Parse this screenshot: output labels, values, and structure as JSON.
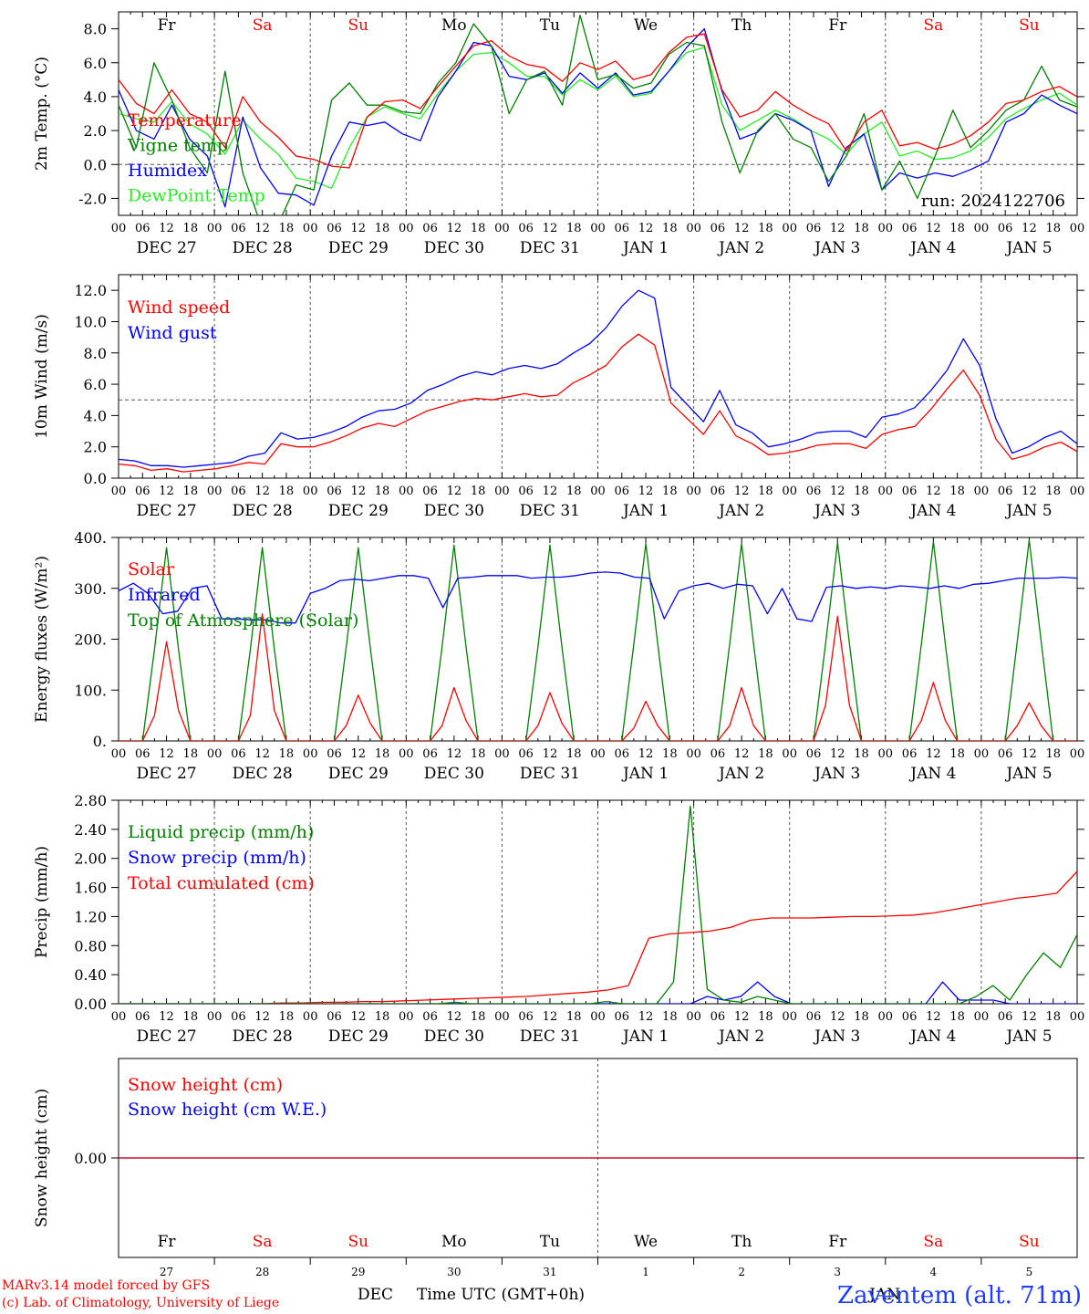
{
  "colors": {
    "red": "#ff0000",
    "green": "#007f00",
    "lightgreen": "#22ee22",
    "blue": "#0000ff",
    "axis": "#000000",
    "grid": "#555555"
  },
  "x_axis": {
    "hour_ticks": [
      "00",
      "06",
      "12",
      "18"
    ],
    "day_labels": [
      "DEC 27",
      "DEC 28",
      "DEC 29",
      "DEC 30",
      "DEC 31",
      "JAN  1",
      "JAN  2",
      "JAN  3",
      "JAN  4",
      "JAN  5"
    ],
    "weekdays": [
      {
        "label": "Fr",
        "weekend": false
      },
      {
        "label": "Sa",
        "weekend": true
      },
      {
        "label": "Su",
        "weekend": true
      },
      {
        "label": "Mo",
        "weekend": false
      },
      {
        "label": "Tu",
        "weekend": false
      },
      {
        "label": "We",
        "weekend": false
      },
      {
        "label": "Th",
        "weekend": false
      },
      {
        "label": "Fr",
        "weekend": false
      },
      {
        "label": "Sa",
        "weekend": true
      },
      {
        "label": "Su",
        "weekend": true
      }
    ],
    "day_numbers": [
      "27",
      "28",
      "29",
      "30",
      "31",
      "1",
      "2",
      "3",
      "4",
      "5"
    ],
    "month_left": "DEC",
    "month_right": "JAN",
    "axis_title": "Time UTC (GMT+0h)"
  },
  "footer": {
    "model_line": "MARv3.14 model forced by GFS",
    "credit_line": "(c) Lab. of Climatology, University of Liege",
    "station": "Zaventem (alt. 71m)"
  },
  "chart_data": [
    {
      "type": "line",
      "id": "temp",
      "ylabel": "2m Temp. (°C)",
      "ylim": [
        -3,
        9
      ],
      "yticks": [
        -2,
        0,
        2,
        4,
        6,
        8
      ],
      "ytick_labels": [
        "-2.0",
        "0.0",
        "2.0",
        "4.0",
        "6.0",
        "8.0"
      ],
      "hline": 0,
      "annotation": "run: 2024122706",
      "x_unit": "hours since Dec 27 00 UTC, every 6 h",
      "legend": [
        {
          "name": "Temperature",
          "color": "red"
        },
        {
          "name": "Vigne temp",
          "color": "green"
        },
        {
          "name": "Humidex",
          "color": "blue"
        },
        {
          "name": "DewPoint Temp",
          "color": "lightgreen"
        }
      ],
      "series": [
        {
          "name": "Temperature",
          "color": "red",
          "values": [
            5,
            3.6,
            3.0,
            4.4,
            3.0,
            2.5,
            1.0,
            4.0,
            2.5,
            1.6,
            0.5,
            0.3,
            -0.1,
            -0.2,
            2.8,
            3.7,
            3.8,
            3.3,
            4.6,
            5.8,
            7.0,
            7.3,
            6.4,
            5.9,
            5.7,
            4.9,
            6.0,
            5.6,
            6.1,
            5.0,
            5.3,
            6.6,
            7.5,
            7.7,
            4.4,
            2.8,
            3.2,
            4.3,
            3.5,
            2.9,
            2.4,
            0.8,
            2.5,
            3.2,
            1.1,
            1.3,
            0.9,
            1.2,
            1.7,
            2.5,
            3.6,
            3.8,
            4.3,
            4.6,
            4.0
          ]
        },
        {
          "name": "Vigne temp",
          "color": "green",
          "values": [
            3.5,
            1.0,
            6.0,
            3.8,
            1.0,
            -0.5,
            5.5,
            -0.5,
            -3.5,
            -3.5,
            -1.2,
            -1.5,
            3.8,
            4.8,
            3.5,
            3.5,
            3.1,
            3.0,
            4.8,
            6.0,
            8.3,
            7.0,
            3.0,
            5.0,
            5.5,
            3.5,
            8.8,
            5.0,
            5.3,
            4.5,
            4.8,
            6.5,
            7.2,
            7.0,
            2.5,
            -0.5,
            2.0,
            3.0,
            1.5,
            1.0,
            -1.0,
            0.5,
            3.0,
            -1.5,
            0.2,
            -2.0,
            0.5,
            3.2,
            1.0,
            2.0,
            3.2,
            3.8,
            5.8,
            3.8,
            3.4
          ]
        },
        {
          "name": "Humidex",
          "color": "blue",
          "values": [
            4.4,
            2.0,
            1.5,
            3.5,
            1.5,
            0.5,
            -2.5,
            2.8,
            -0.2,
            -1.7,
            -1.8,
            -2.4,
            0.5,
            2.5,
            2.3,
            2.5,
            1.8,
            1.4,
            4.0,
            5.5,
            7.2,
            7.0,
            5.2,
            5.0,
            5.4,
            4.2,
            5.4,
            4.5,
            5.4,
            4.1,
            4.3,
            5.5,
            6.9,
            8.0,
            4.3,
            1.5,
            1.9,
            3.0,
            2.6,
            2.0,
            -1.3,
            1.0,
            1.8,
            -1.5,
            -0.5,
            -0.8,
            -0.5,
            -0.7,
            -0.3,
            0.2,
            2.5,
            3.0,
            4.1,
            3.5,
            3.0
          ]
        },
        {
          "name": "DewPoint Temp",
          "color": "lightgreen",
          "values": [
            3.0,
            2.7,
            2.5,
            3.7,
            2.4,
            1.8,
            0.6,
            2.6,
            1.5,
            0.6,
            -0.8,
            -1.0,
            -1.4,
            1.0,
            2.8,
            3.4,
            3.0,
            2.7,
            4.2,
            5.5,
            6.5,
            6.6,
            6.0,
            5.2,
            5.2,
            4.1,
            5.0,
            4.4,
            5.2,
            4.0,
            4.2,
            5.5,
            6.6,
            6.9,
            3.5,
            2.0,
            2.6,
            3.2,
            2.7,
            2.0,
            1.5,
            0.6,
            1.8,
            2.5,
            0.5,
            0.8,
            0.3,
            0.4,
            0.8,
            1.6,
            2.7,
            3.3,
            3.8,
            4.2,
            3.5
          ]
        }
      ]
    },
    {
      "type": "line",
      "id": "wind",
      "ylabel": "10m Wind (m/s)",
      "ylim": [
        0,
        13
      ],
      "yticks": [
        0,
        2,
        4,
        6,
        8,
        10,
        12
      ],
      "ytick_labels": [
        "0.0",
        "2.0",
        "4.0",
        "6.0",
        "8.0",
        "10.0",
        "12.0"
      ],
      "hline": 5,
      "x_unit": "hours since Dec 27 00 UTC, every 6 h",
      "legend": [
        {
          "name": "Wind speed",
          "color": "red"
        },
        {
          "name": "Wind gust",
          "color": "blue"
        }
      ],
      "series": [
        {
          "name": "Wind speed",
          "color": "red",
          "values": [
            0.9,
            0.8,
            0.5,
            0.6,
            0.4,
            0.5,
            0.6,
            0.8,
            1.0,
            0.9,
            2.2,
            2.0,
            2.0,
            2.3,
            2.7,
            3.2,
            3.5,
            3.3,
            3.8,
            4.3,
            4.6,
            4.9,
            5.1,
            5.0,
            5.2,
            5.4,
            5.2,
            5.3,
            6.1,
            6.6,
            7.2,
            8.4,
            9.2,
            8.5,
            4.8,
            3.8,
            2.8,
            4.3,
            2.7,
            2.2,
            1.5,
            1.6,
            1.8,
            2.1,
            2.2,
            2.2,
            1.9,
            2.8,
            3.1,
            3.3,
            4.4,
            5.7,
            6.9,
            5.3,
            2.5,
            1.2,
            1.5,
            2.0,
            2.3,
            1.7
          ]
        },
        {
          "name": "Wind gust",
          "color": "blue",
          "values": [
            1.2,
            1.1,
            0.8,
            0.8,
            0.7,
            0.8,
            0.9,
            1.0,
            1.4,
            1.6,
            2.9,
            2.5,
            2.6,
            2.9,
            3.3,
            3.9,
            4.3,
            4.4,
            4.8,
            5.6,
            6.0,
            6.5,
            6.8,
            6.6,
            7.0,
            7.2,
            7.0,
            7.3,
            8.0,
            8.6,
            9.6,
            11.0,
            12.0,
            11.5,
            5.8,
            4.7,
            3.6,
            5.6,
            3.4,
            2.9,
            2.0,
            2.2,
            2.5,
            2.9,
            3.0,
            3.0,
            2.6,
            3.9,
            4.1,
            4.5,
            5.6,
            6.9,
            8.9,
            7.2,
            3.8,
            1.6,
            2.0,
            2.6,
            3.0,
            2.2
          ]
        }
      ]
    },
    {
      "type": "line",
      "id": "energy",
      "ylabel": "Energy fluxes (W/m²)",
      "ylim": [
        0,
        400
      ],
      "yticks": [
        0,
        100,
        200,
        300,
        400
      ],
      "ytick_labels": [
        "0.",
        "100.",
        "200.",
        "300.",
        "400."
      ],
      "x_unit": "hours since Dec 27 00 UTC, every 3 h",
      "legend": [
        {
          "name": "Solar",
          "color": "red"
        },
        {
          "name": "Infrared",
          "color": "blue"
        },
        {
          "name": "Top of Atmosphere (Solar)",
          "color": "green"
        }
      ],
      "series": [
        {
          "name": "Solar",
          "color": "red",
          "values": [
            0,
            0,
            0,
            50,
            195,
            60,
            0,
            0,
            0,
            0,
            0,
            50,
            250,
            60,
            0,
            0,
            0,
            0,
            0,
            30,
            90,
            35,
            0,
            0,
            0,
            0,
            0,
            30,
            105,
            40,
            0,
            0,
            0,
            0,
            0,
            30,
            95,
            35,
            0,
            0,
            0,
            0,
            0,
            25,
            78,
            30,
            0,
            0,
            0,
            0,
            0,
            30,
            105,
            30,
            0,
            0,
            0,
            0,
            0,
            70,
            245,
            70,
            0,
            0,
            0,
            0,
            0,
            40,
            115,
            40,
            0,
            0,
            0,
            0,
            0,
            30,
            75,
            30,
            0,
            0,
            0
          ]
        },
        {
          "name": "Infrared",
          "color": "blue",
          "values": [
            295,
            310,
            290,
            250,
            255,
            300,
            305,
            240,
            240,
            238,
            238,
            232,
            232,
            290,
            300,
            315,
            318,
            315,
            320,
            325,
            325,
            320,
            262,
            320,
            322,
            325,
            325,
            325,
            320,
            322,
            322,
            325,
            330,
            332,
            330,
            322,
            320,
            240,
            295,
            305,
            310,
            300,
            308,
            305,
            250,
            300,
            240,
            235,
            302,
            305,
            300,
            303,
            300,
            305,
            303,
            300,
            305,
            300,
            308,
            310,
            315,
            320,
            320,
            320,
            322,
            320
          ]
        },
        {
          "name": "Top of Atmosphere (Solar)",
          "color": "green",
          "values": [
            0,
            0,
            0,
            180,
            380,
            180,
            0,
            0,
            0,
            0,
            0,
            180,
            380,
            180,
            0,
            0,
            0,
            0,
            0,
            185,
            380,
            185,
            0,
            0,
            0,
            0,
            0,
            185,
            385,
            185,
            0,
            0,
            0,
            0,
            0,
            185,
            385,
            185,
            0,
            0,
            0,
            0,
            0,
            190,
            388,
            190,
            0,
            0,
            0,
            0,
            0,
            190,
            388,
            190,
            0,
            0,
            0,
            0,
            0,
            190,
            390,
            190,
            0,
            0,
            0,
            0,
            0,
            190,
            392,
            190,
            0,
            0,
            0,
            0,
            0,
            195,
            395,
            195,
            0,
            0,
            0
          ]
        }
      ]
    },
    {
      "type": "line",
      "id": "precip",
      "ylabel": "Precip (mm/h)",
      "ylim": [
        0,
        2.8
      ],
      "yticks": [
        0,
        0.4,
        0.8,
        1.2,
        1.6,
        2.0,
        2.4,
        2.8
      ],
      "ytick_labels": [
        "0.00",
        "0.40",
        "0.80",
        "1.20",
        "1.60",
        "2.00",
        "2.40",
        "2.80"
      ],
      "x_unit": "hours since Dec 27 00 UTC, every 6 h",
      "legend": [
        {
          "name": "Liquid precip (mm/h)",
          "color": "green"
        },
        {
          "name": "Snow precip (mm/h)",
          "color": "blue"
        },
        {
          "name": "Total cumulated (cm)",
          "color": "red"
        }
      ],
      "series": [
        {
          "name": "Liquid precip (mm/h)",
          "color": "green",
          "values": [
            0,
            0,
            0,
            0,
            0,
            0,
            0,
            0,
            0,
            0,
            0,
            0,
            0,
            0,
            0,
            0,
            0,
            0,
            0,
            0,
            0.02,
            0,
            0,
            0,
            0,
            0,
            0,
            0,
            0,
            0.03,
            0,
            0,
            0,
            0.3,
            2.72,
            0.2,
            0.05,
            0.02,
            0.1,
            0.05,
            0,
            0,
            0,
            0,
            0,
            0,
            0,
            0,
            0,
            0,
            0,
            0.1,
            0.25,
            0.05,
            0.4,
            0.7,
            0.5,
            0.95
          ]
        },
        {
          "name": "Snow precip (mm/h)",
          "color": "blue",
          "values": [
            0,
            0,
            0,
            0,
            0,
            0,
            0,
            0,
            0,
            0,
            0,
            0,
            0,
            0,
            0,
            0,
            0,
            0,
            0,
            0,
            0,
            0,
            0,
            0,
            0,
            0,
            0,
            0,
            0,
            0,
            0,
            0,
            0,
            0,
            0,
            0.1,
            0.05,
            0.1,
            0.3,
            0.1,
            0,
            0,
            0,
            0,
            0,
            0,
            0,
            0,
            0,
            0.3,
            0.05,
            0.05,
            0.05,
            0,
            0,
            0,
            0,
            0
          ]
        },
        {
          "name": "Total cumulated (cm)",
          "color": "red",
          "values": [
            0,
            0,
            0,
            0,
            0,
            0,
            0,
            0,
            0.01,
            0.01,
            0.02,
            0.02,
            0.03,
            0.03,
            0.04,
            0.05,
            0.06,
            0.07,
            0.08,
            0.09,
            0.1,
            0.12,
            0.14,
            0.16,
            0.19,
            0.25,
            0.9,
            0.96,
            0.98,
            1.0,
            1.05,
            1.15,
            1.18,
            1.18,
            1.18,
            1.19,
            1.2,
            1.2,
            1.21,
            1.22,
            1.25,
            1.3,
            1.35,
            1.4,
            1.45,
            1.48,
            1.52,
            1.82
          ]
        }
      ]
    },
    {
      "type": "line",
      "id": "snow",
      "ylabel": "Snow height (cm)",
      "ylim": [
        -1,
        1
      ],
      "yticks": [
        0
      ],
      "ytick_labels": [
        "0.00"
      ],
      "x_unit": "hours since Dec 27 00 UTC, every 6 h",
      "legend": [
        {
          "name": "Snow height (cm)",
          "color": "red"
        },
        {
          "name": "Snow height (cm W.E.)",
          "color": "blue"
        }
      ],
      "series": [
        {
          "name": "Snow height (cm)",
          "color": "red",
          "values": [
            0,
            0
          ]
        },
        {
          "name": "Snow height (cm W.E.)",
          "color": "blue",
          "values": [
            0,
            0
          ]
        }
      ]
    }
  ]
}
